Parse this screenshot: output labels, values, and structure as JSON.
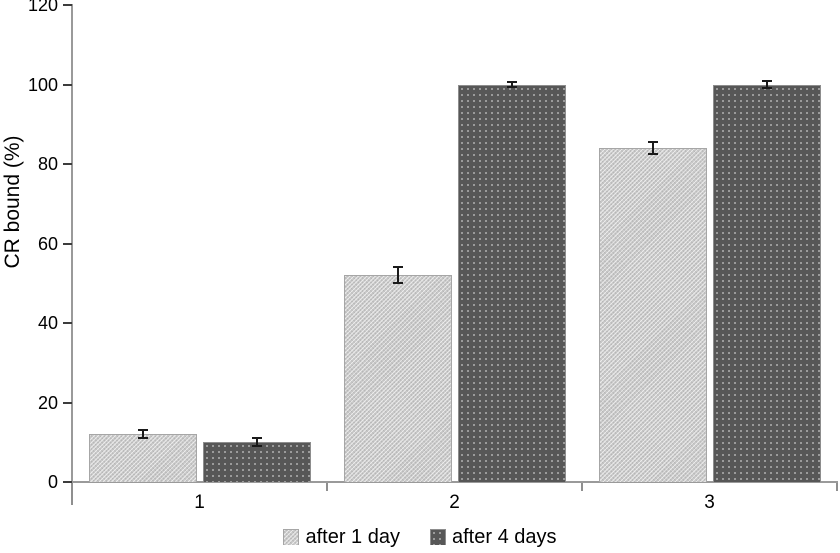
{
  "chart_data": {
    "type": "bar",
    "title": "",
    "xlabel": "",
    "ylabel": "CR bound (%)",
    "categories": [
      "1",
      "2",
      "3"
    ],
    "series": [
      {
        "name": "after 1 day",
        "values": [
          12,
          52,
          84
        ],
        "errors": [
          1,
          2,
          1.5
        ],
        "pattern": "light-diagonal-hatch",
        "color": "#c9c9c9"
      },
      {
        "name": "after 4 days",
        "values": [
          10,
          100,
          100
        ],
        "errors": [
          1,
          0.6,
          1
        ],
        "pattern": "dark-dotted",
        "color": "#575757"
      }
    ],
    "ylim": [
      0,
      120
    ],
    "ytick_step": 20,
    "yticks": [
      0,
      20,
      40,
      60,
      80,
      100,
      120
    ],
    "grid": false,
    "legend_position": "bottom-center",
    "colors": {
      "axis": "#9a9a9a",
      "tick": "#3c3c3c",
      "text": "#000000",
      "error_bar": "#1a1a1a",
      "background": "#ffffff"
    }
  }
}
